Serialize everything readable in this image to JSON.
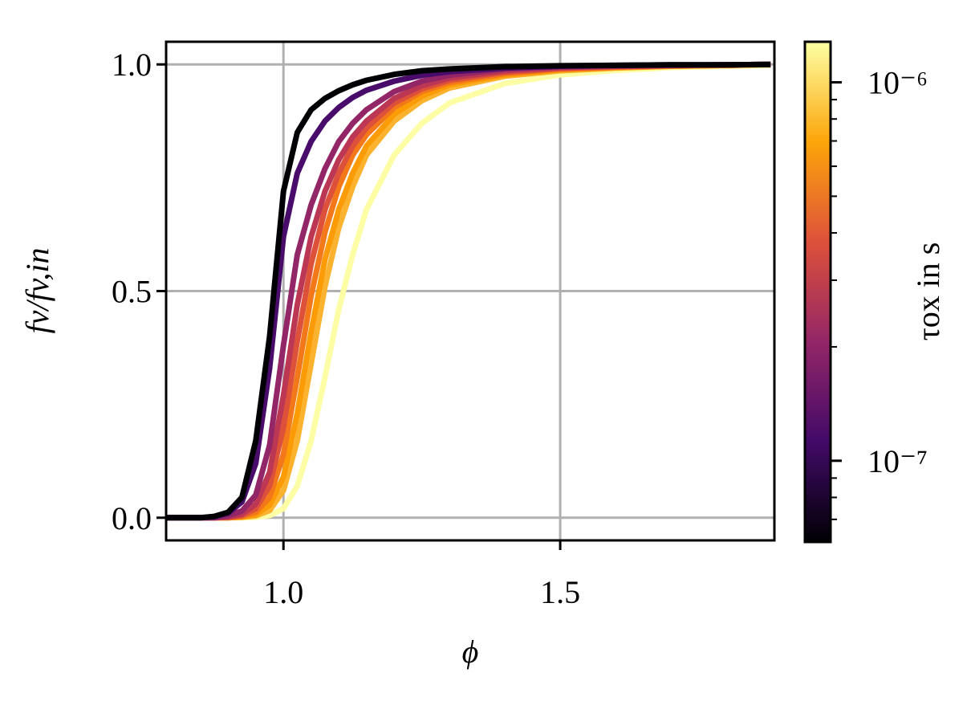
{
  "chart_data": {
    "type": "line",
    "xlabel": "ϕ",
    "ylabel": "fv/fv,in",
    "x": [
      0.79,
      0.85,
      0.875,
      0.9,
      0.925,
      0.95,
      0.975,
      1.0,
      1.025,
      1.05,
      1.075,
      1.1,
      1.125,
      1.15,
      1.2,
      1.25,
      1.3,
      1.4,
      1.5,
      1.6,
      1.7,
      1.8,
      1.88
    ],
    "series": [
      {
        "color": "#fcfda4",
        "values": [
          0,
          0,
          0,
          0,
          0,
          0.001,
          0.005,
          0.02,
          0.07,
          0.17,
          0.31,
          0.46,
          0.58,
          0.68,
          0.8,
          0.87,
          0.915,
          0.958,
          0.977,
          0.987,
          0.993,
          0.996,
          0.998
        ]
      },
      {
        "color": "#fbb32f",
        "values": [
          0,
          0,
          0,
          0,
          0.001,
          0.004,
          0.016,
          0.06,
          0.17,
          0.34,
          0.51,
          0.64,
          0.73,
          0.8,
          0.875,
          0.92,
          0.948,
          0.974,
          0.986,
          0.992,
          0.996,
          0.998,
          1.0
        ]
      },
      {
        "color": "#fb9b06",
        "values": [
          0,
          0,
          0,
          0,
          0.002,
          0.007,
          0.028,
          0.09,
          0.23,
          0.41,
          0.57,
          0.68,
          0.76,
          0.82,
          0.89,
          0.93,
          0.955,
          0.977,
          0.988,
          0.993,
          0.996,
          0.998,
          1.0
        ]
      },
      {
        "color": "#f37819",
        "values": [
          0,
          0,
          0,
          0,
          0.003,
          0.012,
          0.045,
          0.14,
          0.31,
          0.49,
          0.63,
          0.73,
          0.8,
          0.845,
          0.905,
          0.94,
          0.96,
          0.98,
          0.99,
          0.994,
          0.997,
          0.998,
          1.0
        ]
      },
      {
        "color": "#dd513a",
        "values": [
          0,
          0,
          0,
          0.001,
          0.005,
          0.02,
          0.07,
          0.2,
          0.39,
          0.56,
          0.68,
          0.76,
          0.82,
          0.86,
          0.915,
          0.946,
          0.965,
          0.983,
          0.991,
          0.995,
          0.997,
          0.999,
          1.0
        ]
      },
      {
        "color": "#bc3754",
        "values": [
          0,
          0,
          0,
          0.002,
          0.008,
          0.03,
          0.1,
          0.27,
          0.47,
          0.62,
          0.72,
          0.79,
          0.84,
          0.875,
          0.925,
          0.953,
          0.97,
          0.986,
          0.993,
          0.996,
          0.998,
          0.999,
          1.0
        ]
      },
      {
        "color": "#932667",
        "values": [
          0,
          0,
          0,
          0.004,
          0.015,
          0.05,
          0.16,
          0.38,
          0.58,
          0.69,
          0.77,
          0.83,
          0.87,
          0.9,
          0.94,
          0.963,
          0.976,
          0.99,
          0.995,
          0.997,
          0.998,
          0.999,
          1.0
        ]
      },
      {
        "color": "#4a0c6b",
        "values": [
          0,
          0,
          0.002,
          0.01,
          0.035,
          0.12,
          0.33,
          0.62,
          0.76,
          0.83,
          0.875,
          0.905,
          0.927,
          0.943,
          0.963,
          0.976,
          0.984,
          0.992,
          0.996,
          0.998,
          0.999,
          0.999,
          1.0
        ]
      },
      {
        "color": "#000004",
        "values": [
          0,
          0,
          0.003,
          0.012,
          0.045,
          0.17,
          0.4,
          0.72,
          0.85,
          0.9,
          0.925,
          0.942,
          0.955,
          0.965,
          0.978,
          0.986,
          0.99,
          0.995,
          0.997,
          0.998,
          0.999,
          0.999,
          1.0
        ]
      }
    ],
    "xlim": [
      0.788,
      1.887
    ],
    "ylim": [
      -0.05,
      1.05
    ],
    "xticks": [
      {
        "value": 1.0,
        "label": "1.0"
      },
      {
        "value": 1.5,
        "label": "1.5"
      }
    ],
    "yticks": [
      {
        "value": 0.0,
        "label": "0.0"
      },
      {
        "value": 0.5,
        "label": "0.5"
      },
      {
        "value": 1.0,
        "label": "1.0"
      }
    ],
    "grid": true,
    "colorbar": {
      "label": "τox in s",
      "log": true,
      "clim": [
        6.1e-08,
        1.28e-06
      ],
      "colormap": [
        "#000004",
        "#420a68",
        "#932667",
        "#dd513a",
        "#fca50a",
        "#fcffa4"
      ],
      "ticks": [
        {
          "value": 1e-07,
          "label": "10⁻⁷"
        },
        {
          "value": 1e-06,
          "label": "10⁻⁶"
        }
      ],
      "minor_ticks": [
        7e-08,
        8e-08,
        9e-08,
        2e-07,
        3e-07,
        4e-07,
        5e-07,
        6e-07,
        7e-07,
        8e-07,
        9e-07
      ]
    }
  }
}
